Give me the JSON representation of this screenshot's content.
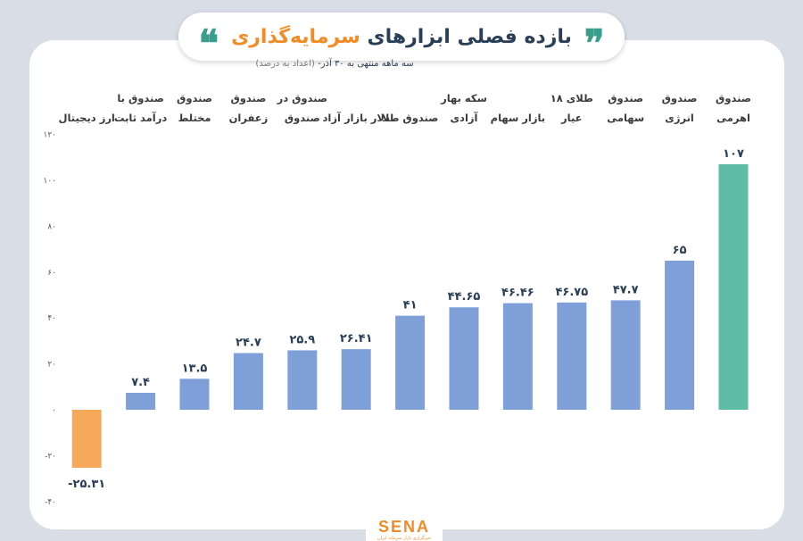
{
  "header": {
    "title_main": "بازده فصلی ابزارهای",
    "title_accent": "سرمایه‌گذاری",
    "subtitle_main": "سه ماهه منتهی به ۳۰ آذر-",
    "subtitle_note": "(اعداد به درصد)",
    "brand": "SENA",
    "brand_sub": "خبرگزاری بازار سرمایه ایران"
  },
  "colors": {
    "default_bar": "#7f9fd8",
    "max_bar": "#5ebda6",
    "negative_bar": "#f7a95a",
    "title": "#2a3e57",
    "accent": "#f28b25"
  },
  "chart_data": {
    "type": "bar",
    "ylim": [
      -40,
      120
    ],
    "yticks": [
      -40,
      -20,
      0,
      20,
      40,
      60,
      80,
      100,
      120
    ],
    "ytick_labels": [
      "-۴۰",
      "-۲۰",
      "۰",
      "۲۰",
      "۴۰",
      "۶۰",
      "۸۰",
      "۱۰۰",
      "۱۲۰"
    ],
    "categories": [
      "ارز دیجیتال",
      "صندوق با درآمد ثابت",
      "صندوق مختلط",
      "صندوق زعفران",
      "صندوق در صندوق",
      "دلار بازار آزاد",
      "صندوق طلا",
      "سکه بهار آزادی",
      "بازار سهام",
      "طلای ۱۸ عیار",
      "صندوق سهامی",
      "صندوق انرژی",
      "صندوق اهرمی"
    ],
    "category_lines": [
      [
        "ارز دیجیتال"
      ],
      [
        "صندوق با",
        "درآمد ثابت"
      ],
      [
        "صندوق",
        "مختلط"
      ],
      [
        "صندوق",
        "زعفران"
      ],
      [
        "صندوق در",
        "صندوق"
      ],
      [
        "دلار بازار آزاد"
      ],
      [
        "صندوق طلا"
      ],
      [
        "سکه بهار",
        "آزادی"
      ],
      [
        "بازار سهام"
      ],
      [
        "طلای ۱۸",
        "عیار"
      ],
      [
        "صندوق",
        "سهامی"
      ],
      [
        "صندوق",
        "انرژی"
      ],
      [
        "صندوق",
        "اهرمی"
      ]
    ],
    "values": [
      -25.31,
      7.4,
      13.5,
      24.7,
      25.9,
      26.41,
      41,
      44.65,
      46.46,
      46.75,
      47.7,
      65,
      107
    ],
    "value_labels": [
      "-۲۵.۳۱",
      "۷.۴",
      "۱۳.۵",
      "۲۴.۷",
      "۲۵.۹",
      "۲۶.۴۱",
      "۴۱",
      "۴۴.۶۵",
      "۴۶.۴۶",
      "۴۶.۷۵",
      "۴۷.۷",
      "۶۵",
      "۱۰۷"
    ]
  }
}
